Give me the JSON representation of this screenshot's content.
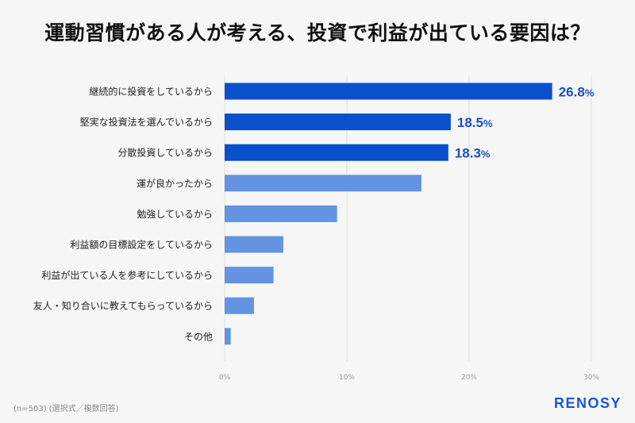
{
  "chart_data": {
    "type": "bar",
    "orientation": "horizontal",
    "title": "運動習慣がある人が考える、投資で利益が出ている要因は？",
    "categories": [
      "継続的に投資をしているから",
      "堅実な投資法を選んでいるから",
      "分散投資しているから",
      "運が良かったから",
      "勉強しているから",
      "利益額の目標設定をしているから",
      "利益が出ている人を参考にしているから",
      "友人・知り合いに教えてもらっているから",
      "その他"
    ],
    "values": [
      26.8,
      18.5,
      18.3,
      16.1,
      9.2,
      4.8,
      4.0,
      2.4,
      0.5
    ],
    "data_labels": [
      "26.8",
      "18.5",
      "18.3",
      null,
      null,
      null,
      null,
      null,
      null
    ],
    "data_label_unit": "%",
    "highlighted_count": 3,
    "xlim": [
      0,
      30
    ],
    "xticks": [
      "0%",
      "10%",
      "20%",
      "30%"
    ],
    "xtick_values": [
      0,
      10,
      20,
      30
    ],
    "grid": "vertical",
    "colors": {
      "highlight": "#0a4fcb",
      "normal": "#6494e0",
      "label": "#1a4fc0"
    }
  },
  "footer": {
    "note": "(n=503) (選択式／複数回答)",
    "logo": "RENOSY"
  }
}
